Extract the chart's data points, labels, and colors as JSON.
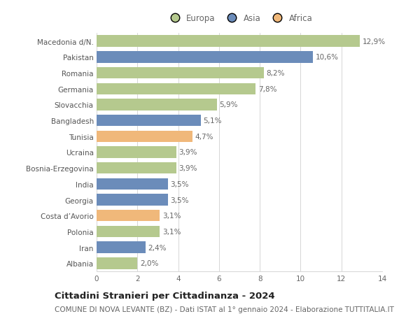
{
  "categories": [
    "Macedonia d/N.",
    "Pakistan",
    "Romania",
    "Germania",
    "Slovacchia",
    "Bangladesh",
    "Tunisia",
    "Ucraina",
    "Bosnia-Erzegovina",
    "India",
    "Georgia",
    "Costa d’Avorio",
    "Polonia",
    "Iran",
    "Albania"
  ],
  "values": [
    12.9,
    10.6,
    8.2,
    7.8,
    5.9,
    5.1,
    4.7,
    3.9,
    3.9,
    3.5,
    3.5,
    3.1,
    3.1,
    2.4,
    2.0
  ],
  "labels": [
    "12,9%",
    "10,6%",
    "8,2%",
    "7,8%",
    "5,9%",
    "5,1%",
    "4,7%",
    "3,9%",
    "3,9%",
    "3,5%",
    "3,5%",
    "3,1%",
    "3,1%",
    "2,4%",
    "2,0%"
  ],
  "continents": [
    "Europa",
    "Asia",
    "Europa",
    "Europa",
    "Europa",
    "Asia",
    "Africa",
    "Europa",
    "Europa",
    "Asia",
    "Asia",
    "Africa",
    "Europa",
    "Asia",
    "Europa"
  ],
  "colors": {
    "Europa": "#b5c98e",
    "Asia": "#6b8cba",
    "Africa": "#f0b87a"
  },
  "xlim": [
    0,
    14
  ],
  "xticks": [
    0,
    2,
    4,
    6,
    8,
    10,
    12,
    14
  ],
  "title": "Cittadini Stranieri per Cittadinanza - 2024",
  "subtitle": "COMUNE DI NOVA LEVANTE (BZ) - Dati ISTAT al 1° gennaio 2024 - Elaborazione TUTTITALIA.IT",
  "background_color": "#ffffff",
  "grid_color": "#d0d0d0",
  "bar_height": 0.72,
  "title_fontsize": 9.5,
  "subtitle_fontsize": 7.5,
  "label_fontsize": 7.5,
  "tick_fontsize": 7.5,
  "legend_fontsize": 8.5
}
